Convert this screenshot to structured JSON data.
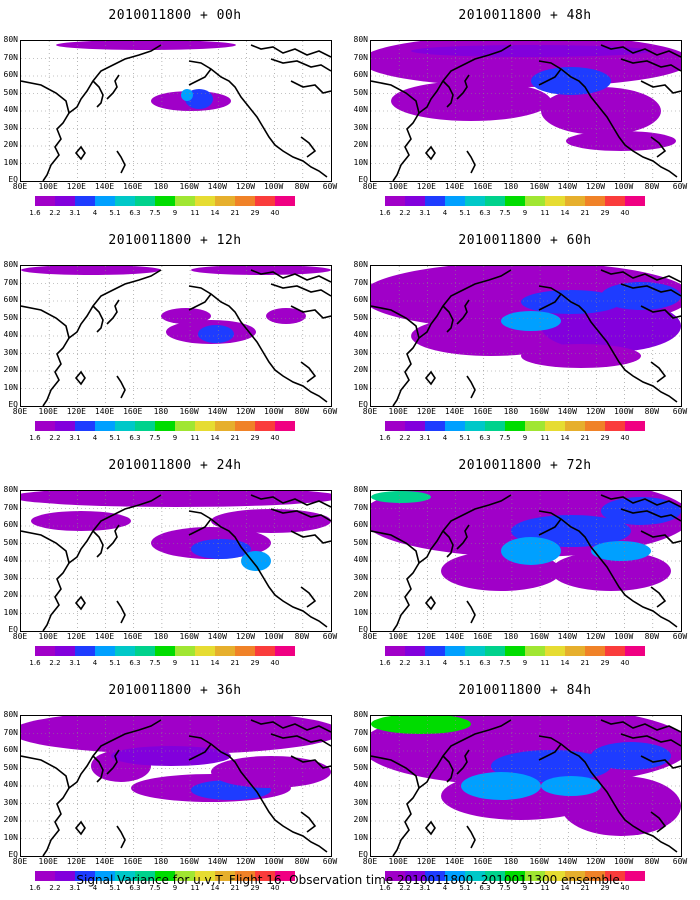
{
  "panels": [
    {
      "title": "2010011800 + 00h",
      "forecast_hour": 0
    },
    {
      "title": "2010011800 + 48h",
      "forecast_hour": 48
    },
    {
      "title": "2010011800 + 12h",
      "forecast_hour": 12
    },
    {
      "title": "2010011800 + 60h",
      "forecast_hour": 60
    },
    {
      "title": "2010011800 + 24h",
      "forecast_hour": 24
    },
    {
      "title": "2010011800 + 72h",
      "forecast_hour": 72
    },
    {
      "title": "2010011800 + 36h",
      "forecast_hour": 36
    },
    {
      "title": "2010011800 + 84h",
      "forecast_hour": 84
    }
  ],
  "axes": {
    "lat_labels": [
      "80N",
      "70N",
      "60N",
      "50N",
      "40N",
      "30N",
      "20N",
      "10N",
      "EQ"
    ],
    "lon_labels": [
      "80E",
      "100E",
      "120E",
      "140E",
      "160E",
      "180",
      "160W",
      "140W",
      "120W",
      "100W",
      "80W",
      "60W"
    ]
  },
  "colorbar": {
    "labels": [
      "1.6",
      "2.2",
      "3.1",
      "4",
      "5.1",
      "6.3",
      "7.5",
      "9",
      "11",
      "14",
      "21",
      "29",
      "40"
    ],
    "colors": [
      "#a000c8",
      "#8200dc",
      "#1e3cff",
      "#00a0ff",
      "#00c8c8",
      "#00d28c",
      "#00dc00",
      "#a0e632",
      "#e6dc32",
      "#e6af2d",
      "#f08228",
      "#fa3c3c",
      "#f00082"
    ]
  },
  "caption": "Signal Variance for u,v,T. Flight 16. Observation time 2010011800. 2010011300 ensemble."
}
